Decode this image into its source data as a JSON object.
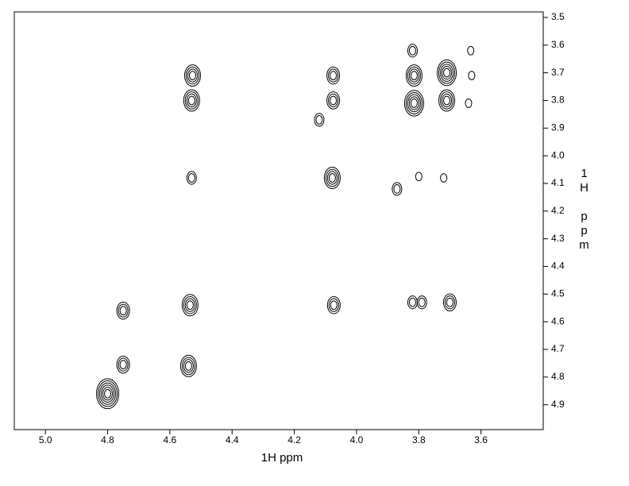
{
  "chart_data": {
    "type": "contour",
    "x_label": "1H ppm",
    "y_label": "1H ppm",
    "xlim": [
      5.1,
      3.4
    ],
    "ylim": [
      3.48,
      4.99
    ],
    "xticks": [
      {
        "value": 5.0,
        "label": "5.0"
      },
      4.8,
      4.6,
      4.4,
      4.2,
      {
        "value": 4.0,
        "label": "4.0"
      },
      3.8,
      3.6
    ],
    "yticks": [
      3.5,
      3.6,
      3.7,
      3.8,
      3.9,
      {
        "value": 4.0,
        "label": "4.0"
      },
      4.1,
      4.2,
      4.3,
      4.4,
      4.5,
      4.6,
      4.7,
      4.8,
      4.9
    ],
    "color": "#000000",
    "x": [
      4.527,
      4.53,
      4.53,
      4.535,
      4.54,
      4.75,
      4.75,
      4.8,
      4.075,
      4.075,
      4.12,
      4.078,
      4.073,
      3.82,
      3.815,
      3.815,
      3.87,
      3.8,
      3.82,
      3.79,
      3.71,
      3.71,
      3.72,
      3.7,
      3.633,
      3.63,
      3.64
    ],
    "y": [
      3.71,
      3.8,
      4.08,
      4.54,
      4.76,
      4.56,
      4.755,
      4.86,
      3.71,
      3.8,
      3.87,
      4.08,
      4.54,
      3.62,
      3.71,
      3.81,
      4.12,
      4.075,
      4.53,
      4.53,
      3.7,
      3.8,
      4.08,
      4.53,
      3.62,
      3.71,
      3.81
    ],
    "size": [
      4,
      4,
      2,
      4,
      4,
      3,
      3,
      6,
      3,
      3,
      2,
      4,
      3,
      2,
      4,
      5,
      2,
      1,
      2,
      2,
      5,
      4,
      1,
      3,
      1,
      1,
      1
    ]
  }
}
